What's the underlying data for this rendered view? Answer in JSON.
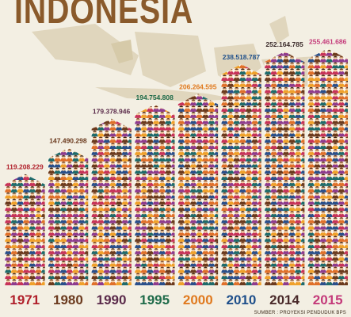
{
  "title": "INDONESIA",
  "source": "SUMBER : PROYEKSI PENDUDUK BPS",
  "chart_data": {
    "type": "bar",
    "categories": [
      "1971",
      "1980",
      "1990",
      "1995",
      "2000",
      "2010",
      "2014",
      "2015"
    ],
    "values": [
      119208229,
      147490298,
      179378946,
      194754808,
      206264595,
      238518787,
      252164785,
      255461686
    ],
    "value_labels": [
      "119.208.229",
      "147.490.298",
      "179.378.946",
      "194.754.808",
      "206.264.595",
      "238.518.787",
      "252.164.785",
      "255.461.686"
    ],
    "year_colors": [
      "#b0202b",
      "#6b3a1e",
      "#5a2a4a",
      "#1f6b4a",
      "#e07a1f",
      "#1e4f8a",
      "#4a2a2a",
      "#c43a7a"
    ],
    "label_colors": [
      "#b0202b",
      "#6b3a1e",
      "#5a2a4a",
      "#1f6b4a",
      "#e07a1f",
      "#1e4f8a",
      "#3a2a2a",
      "#c43a7a"
    ],
    "people_colors": [
      "#8e3b8e",
      "#e0702a",
      "#1f6b6b",
      "#c7335a",
      "#f0a12a",
      "#2a4f8a",
      "#6b3a1e"
    ]
  }
}
